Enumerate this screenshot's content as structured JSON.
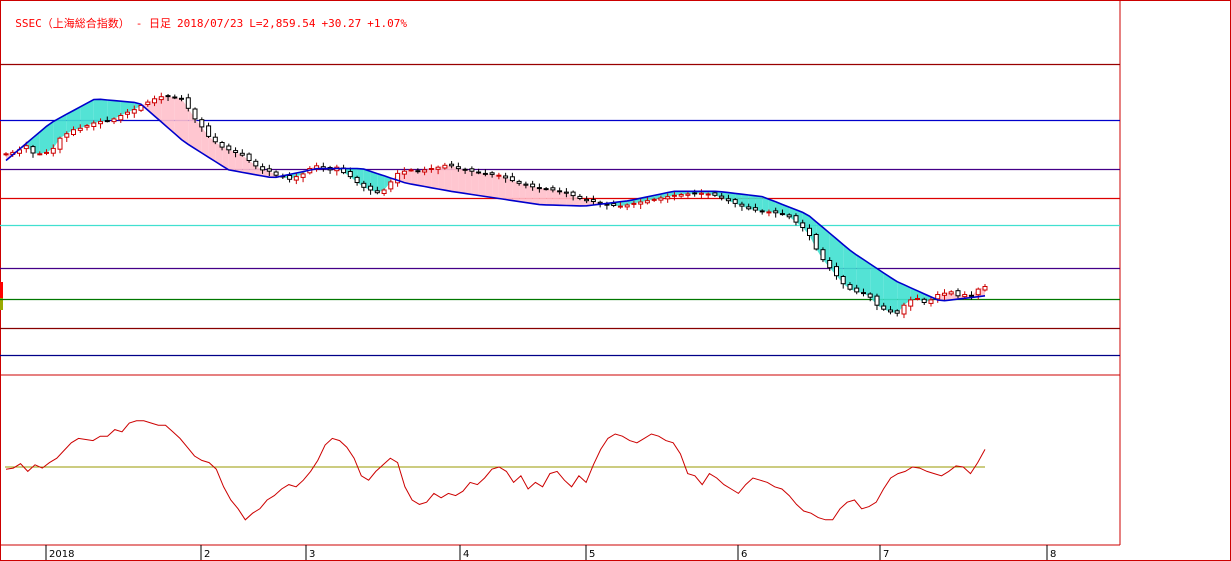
{
  "header": {
    "symbol": "SSEC（上海総合指数）",
    "period": "- 日足",
    "date": "2018/07/23",
    "last": "L=2,859.54",
    "change": "+30.27",
    "change_pct": "+1.07%"
  },
  "colors": {
    "frame": "#cc0000",
    "up_candle": "#cc0000",
    "down_candle": "#000000",
    "ma_line": "#0000cc",
    "cloud_bear": "#40e0d0",
    "cloud_bull": "#ffc0cb",
    "oscillator": "#cc0000",
    "osc_baseline": "#999900"
  },
  "chart_data": [
    {
      "type": "candlestick",
      "title": "",
      "y_axis_visible": false,
      "x_tick_labels": [
        "2018",
        "2",
        "3",
        "4",
        "5",
        "6",
        "7",
        "8"
      ],
      "levels": [
        {
          "value": 3690,
          "color": "#990000"
        },
        {
          "value": 3480,
          "color": "#0000cc"
        },
        {
          "value": 3300,
          "color": "#440088"
        },
        {
          "value": 3190,
          "color": "#dd0000"
        },
        {
          "value": 3090,
          "color": "#40e0d0"
        },
        {
          "value": 2930,
          "color": "#440088"
        },
        {
          "value": 2815,
          "color": "#007700"
        },
        {
          "value": 2705,
          "color": "#880000"
        },
        {
          "value": 2605,
          "color": "#000088"
        }
      ],
      "ohlc_close": [
        3355,
        3360,
        3370,
        3385,
        3358,
        3355,
        3360,
        3375,
        3413,
        3430,
        3445,
        3450,
        3460,
        3470,
        3475,
        3478,
        3485,
        3498,
        3510,
        3520,
        3535,
        3548,
        3560,
        3568,
        3570,
        3565,
        3560,
        3525,
        3485,
        3455,
        3420,
        3400,
        3380,
        3370,
        3360,
        3350,
        3330,
        3310,
        3295,
        3290,
        3275,
        3270,
        3260,
        3270,
        3280,
        3300,
        3310,
        3300,
        3295,
        3305,
        3285,
        3270,
        3248,
        3230,
        3220,
        3210,
        3220,
        3250,
        3282,
        3290,
        3295,
        3290,
        3295,
        3300,
        3305,
        3312,
        3310,
        3300,
        3295,
        3290,
        3285,
        3280,
        3278,
        3275,
        3265,
        3255,
        3245,
        3238,
        3232,
        3228,
        3224,
        3220,
        3215,
        3208,
        3199,
        3188,
        3180,
        3177,
        3170,
        3165,
        3162,
        3160,
        3164,
        3170,
        3175,
        3180,
        3185,
        3190,
        3195,
        3200,
        3203,
        3205,
        3207,
        3208,
        3205,
        3200,
        3190,
        3180,
        3170,
        3160,
        3150,
        3145,
        3140,
        3138,
        3135,
        3130,
        3120,
        3100,
        3080,
        3050,
        3000,
        2960,
        2930,
        2900,
        2870,
        2850,
        2840,
        2835,
        2820,
        2790,
        2775,
        2765,
        2760,
        2790,
        2810,
        2815,
        2800,
        2810,
        2830,
        2835,
        2840,
        2825,
        2830,
        2825,
        2850,
        2860
      ],
      "ma_line_approx": [
        3330,
        3470,
        3560,
        3545,
        3400,
        3295,
        3265,
        3300,
        3300,
        3245,
        3215,
        3190,
        3165,
        3160,
        3180,
        3215,
        3215,
        3195,
        3130,
        2990,
        2880,
        2805,
        2825
      ],
      "oscillator": {
        "baseline_visible": true,
        "values": [
          -2,
          -1,
          3,
          -4,
          2,
          -1,
          4,
          8,
          15,
          22,
          26,
          25,
          24,
          28,
          28,
          34,
          32,
          40,
          42,
          42,
          40,
          38,
          38,
          32,
          26,
          18,
          10,
          6,
          4,
          -2,
          -18,
          -30,
          -38,
          -48,
          -42,
          -38,
          -30,
          -26,
          -20,
          -16,
          -18,
          -12,
          -4,
          6,
          20,
          26,
          24,
          18,
          8,
          -8,
          -12,
          -4,
          2,
          8,
          4,
          -18,
          -30,
          -34,
          -32,
          -24,
          -28,
          -24,
          -26,
          -22,
          -14,
          -16,
          -10,
          -2,
          0,
          -4,
          -14,
          -8,
          -20,
          -14,
          -18,
          -6,
          -4,
          -12,
          -18,
          -8,
          -14,
          2,
          16,
          26,
          30,
          28,
          24,
          22,
          26,
          30,
          28,
          24,
          22,
          12,
          -6,
          -8,
          -16,
          -6,
          -10,
          -16,
          -20,
          -24,
          -16,
          -10,
          -12,
          -14,
          -18,
          -20,
          -26,
          -34,
          -40,
          -42,
          -46,
          -48,
          -48,
          -38,
          -32,
          -30,
          -38,
          -36,
          -32,
          -20,
          -10,
          -6,
          -4,
          0,
          -1,
          -4,
          -6,
          -8,
          -4,
          1,
          0,
          -6,
          4,
          16
        ]
      }
    }
  ]
}
